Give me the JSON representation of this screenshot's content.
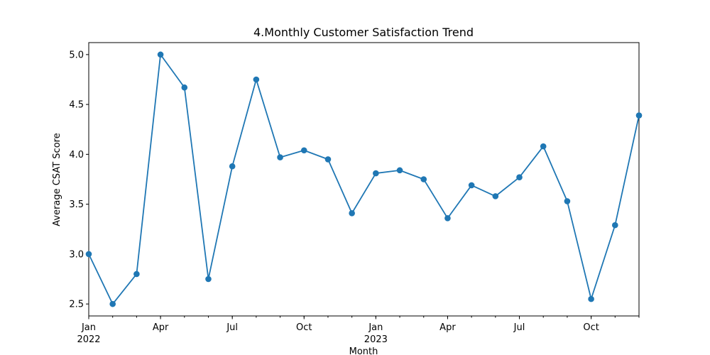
{
  "chart_data": {
    "type": "line",
    "title": "4.Monthly Customer Satisfaction Trend",
    "xlabel": "Month",
    "ylabel": "Average CSAT Score",
    "x": [
      "2022-01",
      "2022-02",
      "2022-03",
      "2022-04",
      "2022-05",
      "2022-06",
      "2022-07",
      "2022-08",
      "2022-09",
      "2022-10",
      "2022-11",
      "2022-12",
      "2023-01",
      "2023-02",
      "2023-03",
      "2023-04",
      "2023-05",
      "2023-06",
      "2023-07",
      "2023-08",
      "2023-09",
      "2023-10",
      "2023-11",
      "2023-12"
    ],
    "series": [
      {
        "values": [
          3.0,
          2.5,
          2.8,
          5.0,
          4.67,
          2.75,
          3.88,
          4.75,
          3.97,
          4.04,
          3.95,
          3.41,
          3.81,
          3.84,
          3.75,
          3.36,
          3.69,
          3.58,
          3.77,
          4.08,
          3.53,
          2.55,
          3.29,
          4.39
        ],
        "color": "#1f77b4"
      }
    ],
    "xlim": [
      "2022-01",
      "2023-12"
    ],
    "ylim": [
      2.38,
      5.12
    ],
    "yticks": [
      "2.5",
      "3.0",
      "3.5",
      "4.0",
      "4.5",
      "5.0"
    ],
    "xticks": [
      {
        "month": "2022-01",
        "label": "Jan",
        "sublabel": "2022"
      },
      {
        "month": "2022-04",
        "label": "Apr"
      },
      {
        "month": "2022-07",
        "label": "Jul"
      },
      {
        "month": "2022-10",
        "label": "Oct"
      },
      {
        "month": "2023-01",
        "label": "Jan",
        "sublabel": "2023"
      },
      {
        "month": "2023-04",
        "label": "Apr"
      },
      {
        "month": "2023-07",
        "label": "Jul"
      },
      {
        "month": "2023-10",
        "label": "Oct"
      }
    ],
    "grid": false,
    "legend": "none"
  }
}
